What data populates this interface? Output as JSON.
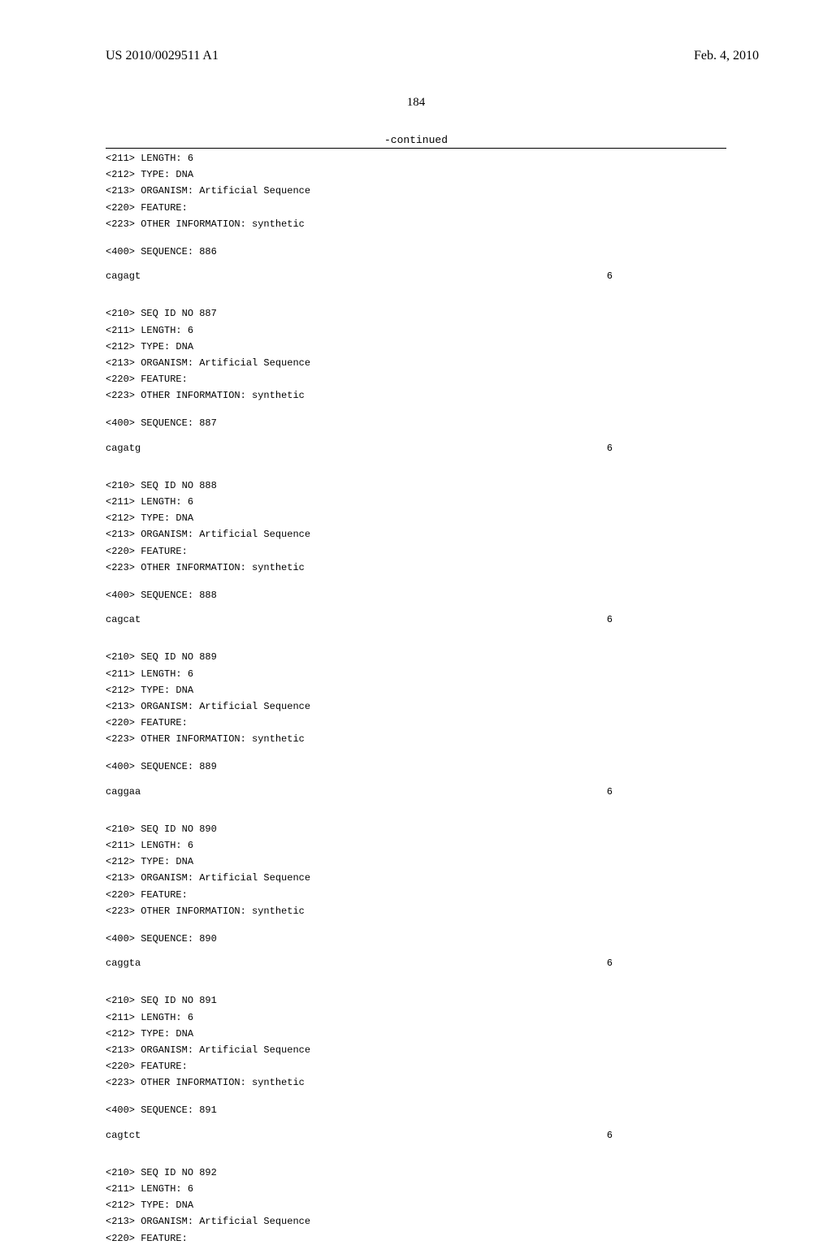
{
  "header": {
    "pub_number": "US 2010/0029511 A1",
    "pub_date": "Feb. 4, 2010"
  },
  "page_number": "184",
  "continued_label": "-continued",
  "initial": {
    "lines": [
      "<211> LENGTH: 6",
      "<212> TYPE: DNA",
      "<213> ORGANISM: Artificial Sequence",
      "<220> FEATURE:",
      "<223> OTHER INFORMATION: synthetic"
    ],
    "seq_label": "<400> SEQUENCE: 886",
    "seq_data": "cagagt",
    "seq_len": "6"
  },
  "blocks": [
    {
      "lines": [
        "<210> SEQ ID NO 887",
        "<211> LENGTH: 6",
        "<212> TYPE: DNA",
        "<213> ORGANISM: Artificial Sequence",
        "<220> FEATURE:",
        "<223> OTHER INFORMATION: synthetic"
      ],
      "seq_label": "<400> SEQUENCE: 887",
      "seq_data": "cagatg",
      "seq_len": "6"
    },
    {
      "lines": [
        "<210> SEQ ID NO 888",
        "<211> LENGTH: 6",
        "<212> TYPE: DNA",
        "<213> ORGANISM: Artificial Sequence",
        "<220> FEATURE:",
        "<223> OTHER INFORMATION: synthetic"
      ],
      "seq_label": "<400> SEQUENCE: 888",
      "seq_data": "cagcat",
      "seq_len": "6"
    },
    {
      "lines": [
        "<210> SEQ ID NO 889",
        "<211> LENGTH: 6",
        "<212> TYPE: DNA",
        "<213> ORGANISM: Artificial Sequence",
        "<220> FEATURE:",
        "<223> OTHER INFORMATION: synthetic"
      ],
      "seq_label": "<400> SEQUENCE: 889",
      "seq_data": "caggaa",
      "seq_len": "6"
    },
    {
      "lines": [
        "<210> SEQ ID NO 890",
        "<211> LENGTH: 6",
        "<212> TYPE: DNA",
        "<213> ORGANISM: Artificial Sequence",
        "<220> FEATURE:",
        "<223> OTHER INFORMATION: synthetic"
      ],
      "seq_label": "<400> SEQUENCE: 890",
      "seq_data": "caggta",
      "seq_len": "6"
    },
    {
      "lines": [
        "<210> SEQ ID NO 891",
        "<211> LENGTH: 6",
        "<212> TYPE: DNA",
        "<213> ORGANISM: Artificial Sequence",
        "<220> FEATURE:",
        "<223> OTHER INFORMATION: synthetic"
      ],
      "seq_label": "<400> SEQUENCE: 891",
      "seq_data": "cagtct",
      "seq_len": "6"
    }
  ],
  "trailing": {
    "lines": [
      "<210> SEQ ID NO 892",
      "<211> LENGTH: 6",
      "<212> TYPE: DNA",
      "<213> ORGANISM: Artificial Sequence",
      "<220> FEATURE:"
    ]
  }
}
